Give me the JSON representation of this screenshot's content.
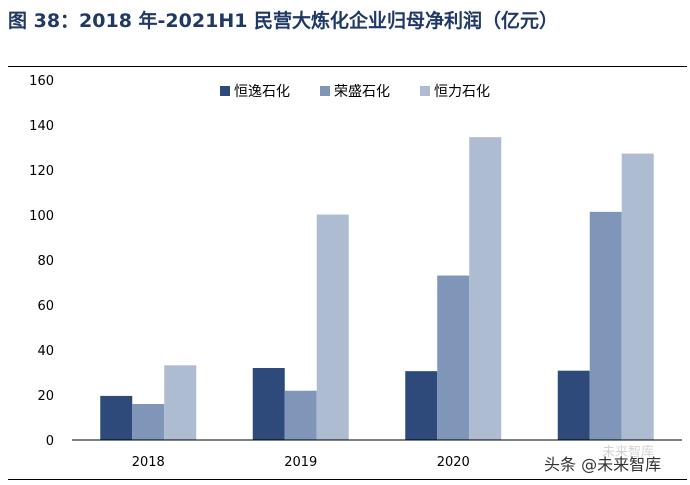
{
  "title": "图 38：2018 年-2021H1 民营大炼化企业归母净利润（亿元）",
  "chart_data": {
    "type": "bar",
    "categories": [
      "2018",
      "2019",
      "2020",
      ""
    ],
    "series": [
      {
        "name": "恒逸石化",
        "color": "#2e4a7a",
        "values": [
          19.6,
          32.0,
          30.6,
          30.8
        ]
      },
      {
        "name": "荣盛石化",
        "color": "#7f96b8",
        "values": [
          16.0,
          21.9,
          73.1,
          101.4
        ]
      },
      {
        "name": "恒力石化",
        "color": "#aebcd1",
        "values": [
          33.2,
          100.2,
          134.6,
          127.3
        ]
      }
    ],
    "ylim": [
      0,
      160
    ],
    "yticks": [
      0,
      20,
      40,
      60,
      80,
      100,
      120,
      140,
      160
    ],
    "legend_position": "top"
  },
  "watermark": {
    "text": "头条 @未来智库",
    "faint_text": "未来智库"
  }
}
